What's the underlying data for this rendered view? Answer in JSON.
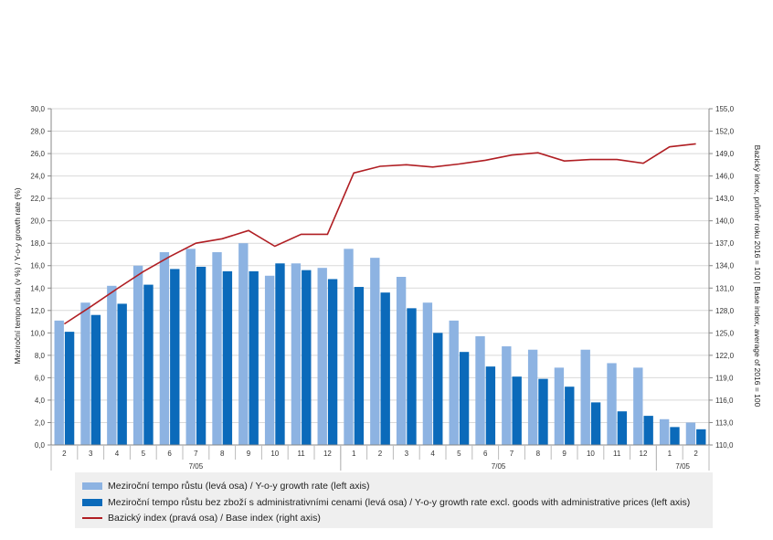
{
  "chart_data": {
    "type": "bar",
    "categories": [
      "2",
      "3",
      "4",
      "5",
      "6",
      "7",
      "8",
      "9",
      "10",
      "11",
      "12",
      "1",
      "2",
      "3",
      "4",
      "5",
      "6",
      "7",
      "8",
      "9",
      "10",
      "11",
      "12",
      "1",
      "2"
    ],
    "year_labels": [
      "7/05",
      "7/05",
      "7/05"
    ],
    "ylabel_left": "Meziroční tempo růstu (v %) / Y-o-y growth rate (%)",
    "ylabel_right": "Bazický index, průměr roku 2016 = 100 | Base index, average of 2016 = 100",
    "ylim_left": [
      0,
      30
    ],
    "ylim_right": [
      110,
      155
    ],
    "left_ticks": [
      "0,0",
      "2,0",
      "4,0",
      "6,0",
      "8,0",
      "10,0",
      "12,0",
      "14,0",
      "16,0",
      "18,0",
      "20,0",
      "22,0",
      "24,0",
      "26,0",
      "28,0",
      "30,0"
    ],
    "right_ticks": [
      "110,0",
      "113,0",
      "116,0",
      "119,0",
      "122,0",
      "125,0",
      "128,0",
      "131,0",
      "134,0",
      "137,0",
      "140,0",
      "143,0",
      "146,0",
      "149,0",
      "152,0",
      "155,0"
    ],
    "grid": true,
    "legend_position": "bottom",
    "series": [
      {
        "name": "Meziroční tempo růstu (levá osa) / Y-o-y growth rate (left axis)",
        "type": "bar",
        "axis": "left",
        "color": "#8db3e2",
        "values": [
          11.1,
          12.7,
          14.2,
          16.0,
          17.2,
          17.5,
          17.2,
          18.0,
          15.1,
          16.2,
          15.8,
          17.5,
          16.7,
          15.0,
          12.7,
          11.1,
          9.7,
          8.8,
          8.5,
          6.9,
          8.5,
          7.3,
          6.9,
          2.3,
          2.0
        ]
      },
      {
        "name": "Meziroční tempo růstu bez zboží s administrativními cenami (levá osa) / Y-o-y growth rate excl. goods with administrative prices (left axis)",
        "type": "bar",
        "axis": "left",
        "color": "#0b6aba",
        "values": [
          10.1,
          11.6,
          12.6,
          14.3,
          15.7,
          15.9,
          15.5,
          15.5,
          16.2,
          15.6,
          14.8,
          14.1,
          13.6,
          12.2,
          10.0,
          8.3,
          7.0,
          6.1,
          5.9,
          5.2,
          3.8,
          3.0,
          2.6,
          1.6,
          1.4
        ]
      },
      {
        "name": "Bazický index (pravá osa) / Base index (right axis)",
        "type": "line",
        "axis": "right",
        "color": "#b01e23",
        "values": [
          126.2,
          128.5,
          130.9,
          133.2,
          135.2,
          137.0,
          137.6,
          138.7,
          136.6,
          138.2,
          138.2,
          146.4,
          147.3,
          147.5,
          147.2,
          147.6,
          148.1,
          148.8,
          149.1,
          148.0,
          148.2,
          148.2,
          147.7,
          149.9,
          150.3
        ]
      }
    ]
  }
}
